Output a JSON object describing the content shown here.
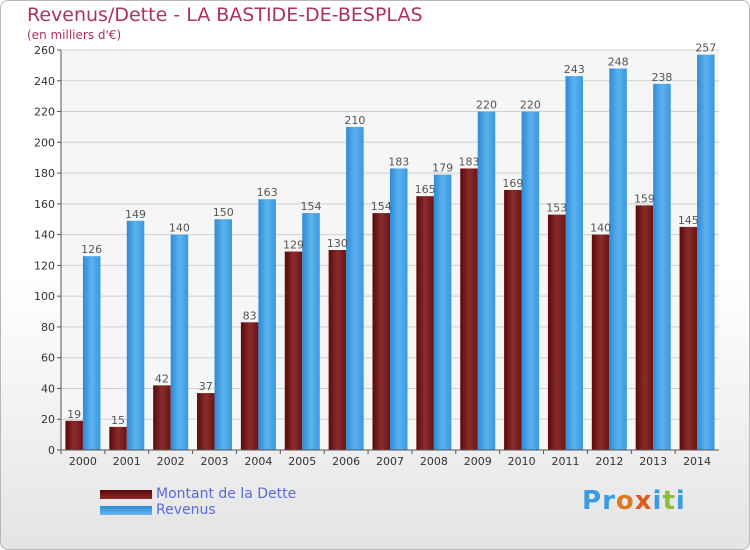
{
  "title": "Revenus/Dette - LA BASTIDE-DE-BESPLAS",
  "subtitle": "(en milliers d'€)",
  "colors": {
    "title": "#b03060",
    "dette": "#7a1a1a",
    "revenus": "#3a9be0"
  },
  "logo": {
    "text": "Proxiti",
    "letters": [
      "P",
      "r",
      "o",
      "x",
      "i",
      "t",
      "i"
    ],
    "colors": [
      "#3a9be0",
      "#3a9be0",
      "#e07a20",
      "#e05a20",
      "#3a9be0",
      "#8ac03a",
      "#3a9be0"
    ]
  },
  "chart_data": {
    "type": "bar",
    "categories": [
      "2000",
      "2001",
      "2002",
      "2003",
      "2004",
      "2005",
      "2006",
      "2007",
      "2008",
      "2009",
      "2010",
      "2011",
      "2012",
      "2013",
      "2014"
    ],
    "series": [
      {
        "name": "Montant de la Dette",
        "values": [
          19,
          15,
          42,
          37,
          83,
          129,
          130,
          154,
          165,
          183,
          169,
          153,
          140,
          159,
          145
        ]
      },
      {
        "name": "Revenus",
        "values": [
          126,
          149,
          140,
          150,
          163,
          154,
          210,
          183,
          179,
          220,
          220,
          243,
          248,
          238,
          257
        ]
      }
    ],
    "yticks": [
      "0",
      "20",
      "40",
      "60",
      "80",
      "100",
      "120",
      "140",
      "160",
      "180",
      "200",
      "220",
      "240",
      "260"
    ],
    "ylim": [
      0,
      260
    ],
    "grid": true,
    "legend_position": "bottom-left"
  }
}
